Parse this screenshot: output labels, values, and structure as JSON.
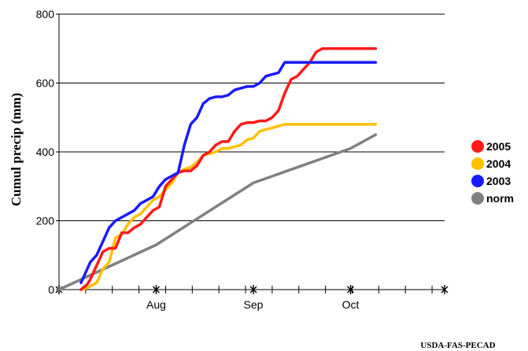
{
  "chart_data": {
    "type": "line",
    "title": "",
    "xlabel": "",
    "ylabel": "Cumul precip (mm)",
    "ylim": [
      0,
      800
    ],
    "yticks": [
      0,
      200,
      400,
      600,
      800
    ],
    "xticks": [
      "Aug",
      "Sep",
      "Oct"
    ],
    "grid": "horizontal",
    "legend": "right",
    "credit": "USDA-FAS-PECAD",
    "series": [
      {
        "name": "2005",
        "color": "#ff1a1a",
        "x": [
          7,
          9,
          10,
          12,
          14,
          16,
          18,
          20,
          22,
          24,
          26,
          28,
          30,
          32,
          34,
          36,
          38,
          40,
          42,
          44,
          46,
          48,
          50,
          52,
          54,
          56,
          58,
          60,
          62,
          64,
          66,
          68,
          70,
          72,
          74,
          76,
          78,
          80,
          82,
          84,
          86,
          88,
          90,
          92,
          94,
          96,
          98,
          100,
          101
        ],
        "y": [
          0,
          15,
          30,
          70,
          110,
          120,
          120,
          165,
          165,
          180,
          190,
          210,
          230,
          240,
          300,
          320,
          340,
          345,
          345,
          360,
          390,
          400,
          420,
          430,
          430,
          460,
          480,
          485,
          485,
          490,
          490,
          500,
          520,
          570,
          610,
          620,
          640,
          660,
          690,
          700,
          700,
          700,
          700,
          700,
          700,
          700,
          700,
          700,
          700
        ]
      },
      {
        "name": "2004",
        "color": "#ffc000",
        "x": [
          7,
          9,
          10,
          12,
          14,
          16,
          18,
          20,
          22,
          24,
          26,
          28,
          30,
          32,
          34,
          36,
          38,
          40,
          42,
          44,
          46,
          48,
          50,
          52,
          54,
          56,
          58,
          60,
          62,
          64,
          66,
          68,
          70,
          72,
          74,
          76,
          78,
          80,
          82,
          84,
          86,
          88,
          90,
          92,
          94,
          96,
          98,
          100,
          101
        ],
        "y": [
          0,
          5,
          10,
          20,
          60,
          80,
          150,
          160,
          190,
          210,
          220,
          240,
          260,
          270,
          290,
          310,
          340,
          350,
          355,
          370,
          390,
          395,
          400,
          410,
          410,
          415,
          420,
          435,
          440,
          460,
          465,
          470,
          475,
          480,
          480,
          480,
          480,
          480,
          480,
          480,
          480,
          480,
          480,
          480,
          480,
          480,
          480,
          480,
          480
        ]
      },
      {
        "name": "2003",
        "color": "#1a1aff",
        "x": [
          7,
          9,
          10,
          12,
          14,
          16,
          18,
          20,
          22,
          24,
          26,
          28,
          30,
          32,
          34,
          36,
          38,
          40,
          42,
          44,
          46,
          48,
          50,
          52,
          54,
          56,
          58,
          60,
          62,
          64,
          66,
          68,
          70,
          72,
          74,
          76,
          78,
          80,
          82,
          84,
          86,
          88,
          90,
          92,
          94,
          96,
          98,
          100,
          101
        ],
        "y": [
          20,
          60,
          80,
          100,
          140,
          180,
          200,
          210,
          220,
          230,
          250,
          260,
          270,
          300,
          320,
          330,
          340,
          420,
          480,
          500,
          540,
          555,
          560,
          560,
          565,
          580,
          585,
          590,
          590,
          600,
          620,
          625,
          630,
          660,
          660,
          660,
          660,
          660,
          660,
          660,
          660,
          660,
          660,
          660,
          660,
          660,
          660,
          660,
          660
        ]
      },
      {
        "name": "norm",
        "color": "#808080",
        "x": [
          0,
          31,
          62,
          93,
          101
        ],
        "y": [
          0,
          130,
          310,
          410,
          450
        ]
      }
    ]
  }
}
